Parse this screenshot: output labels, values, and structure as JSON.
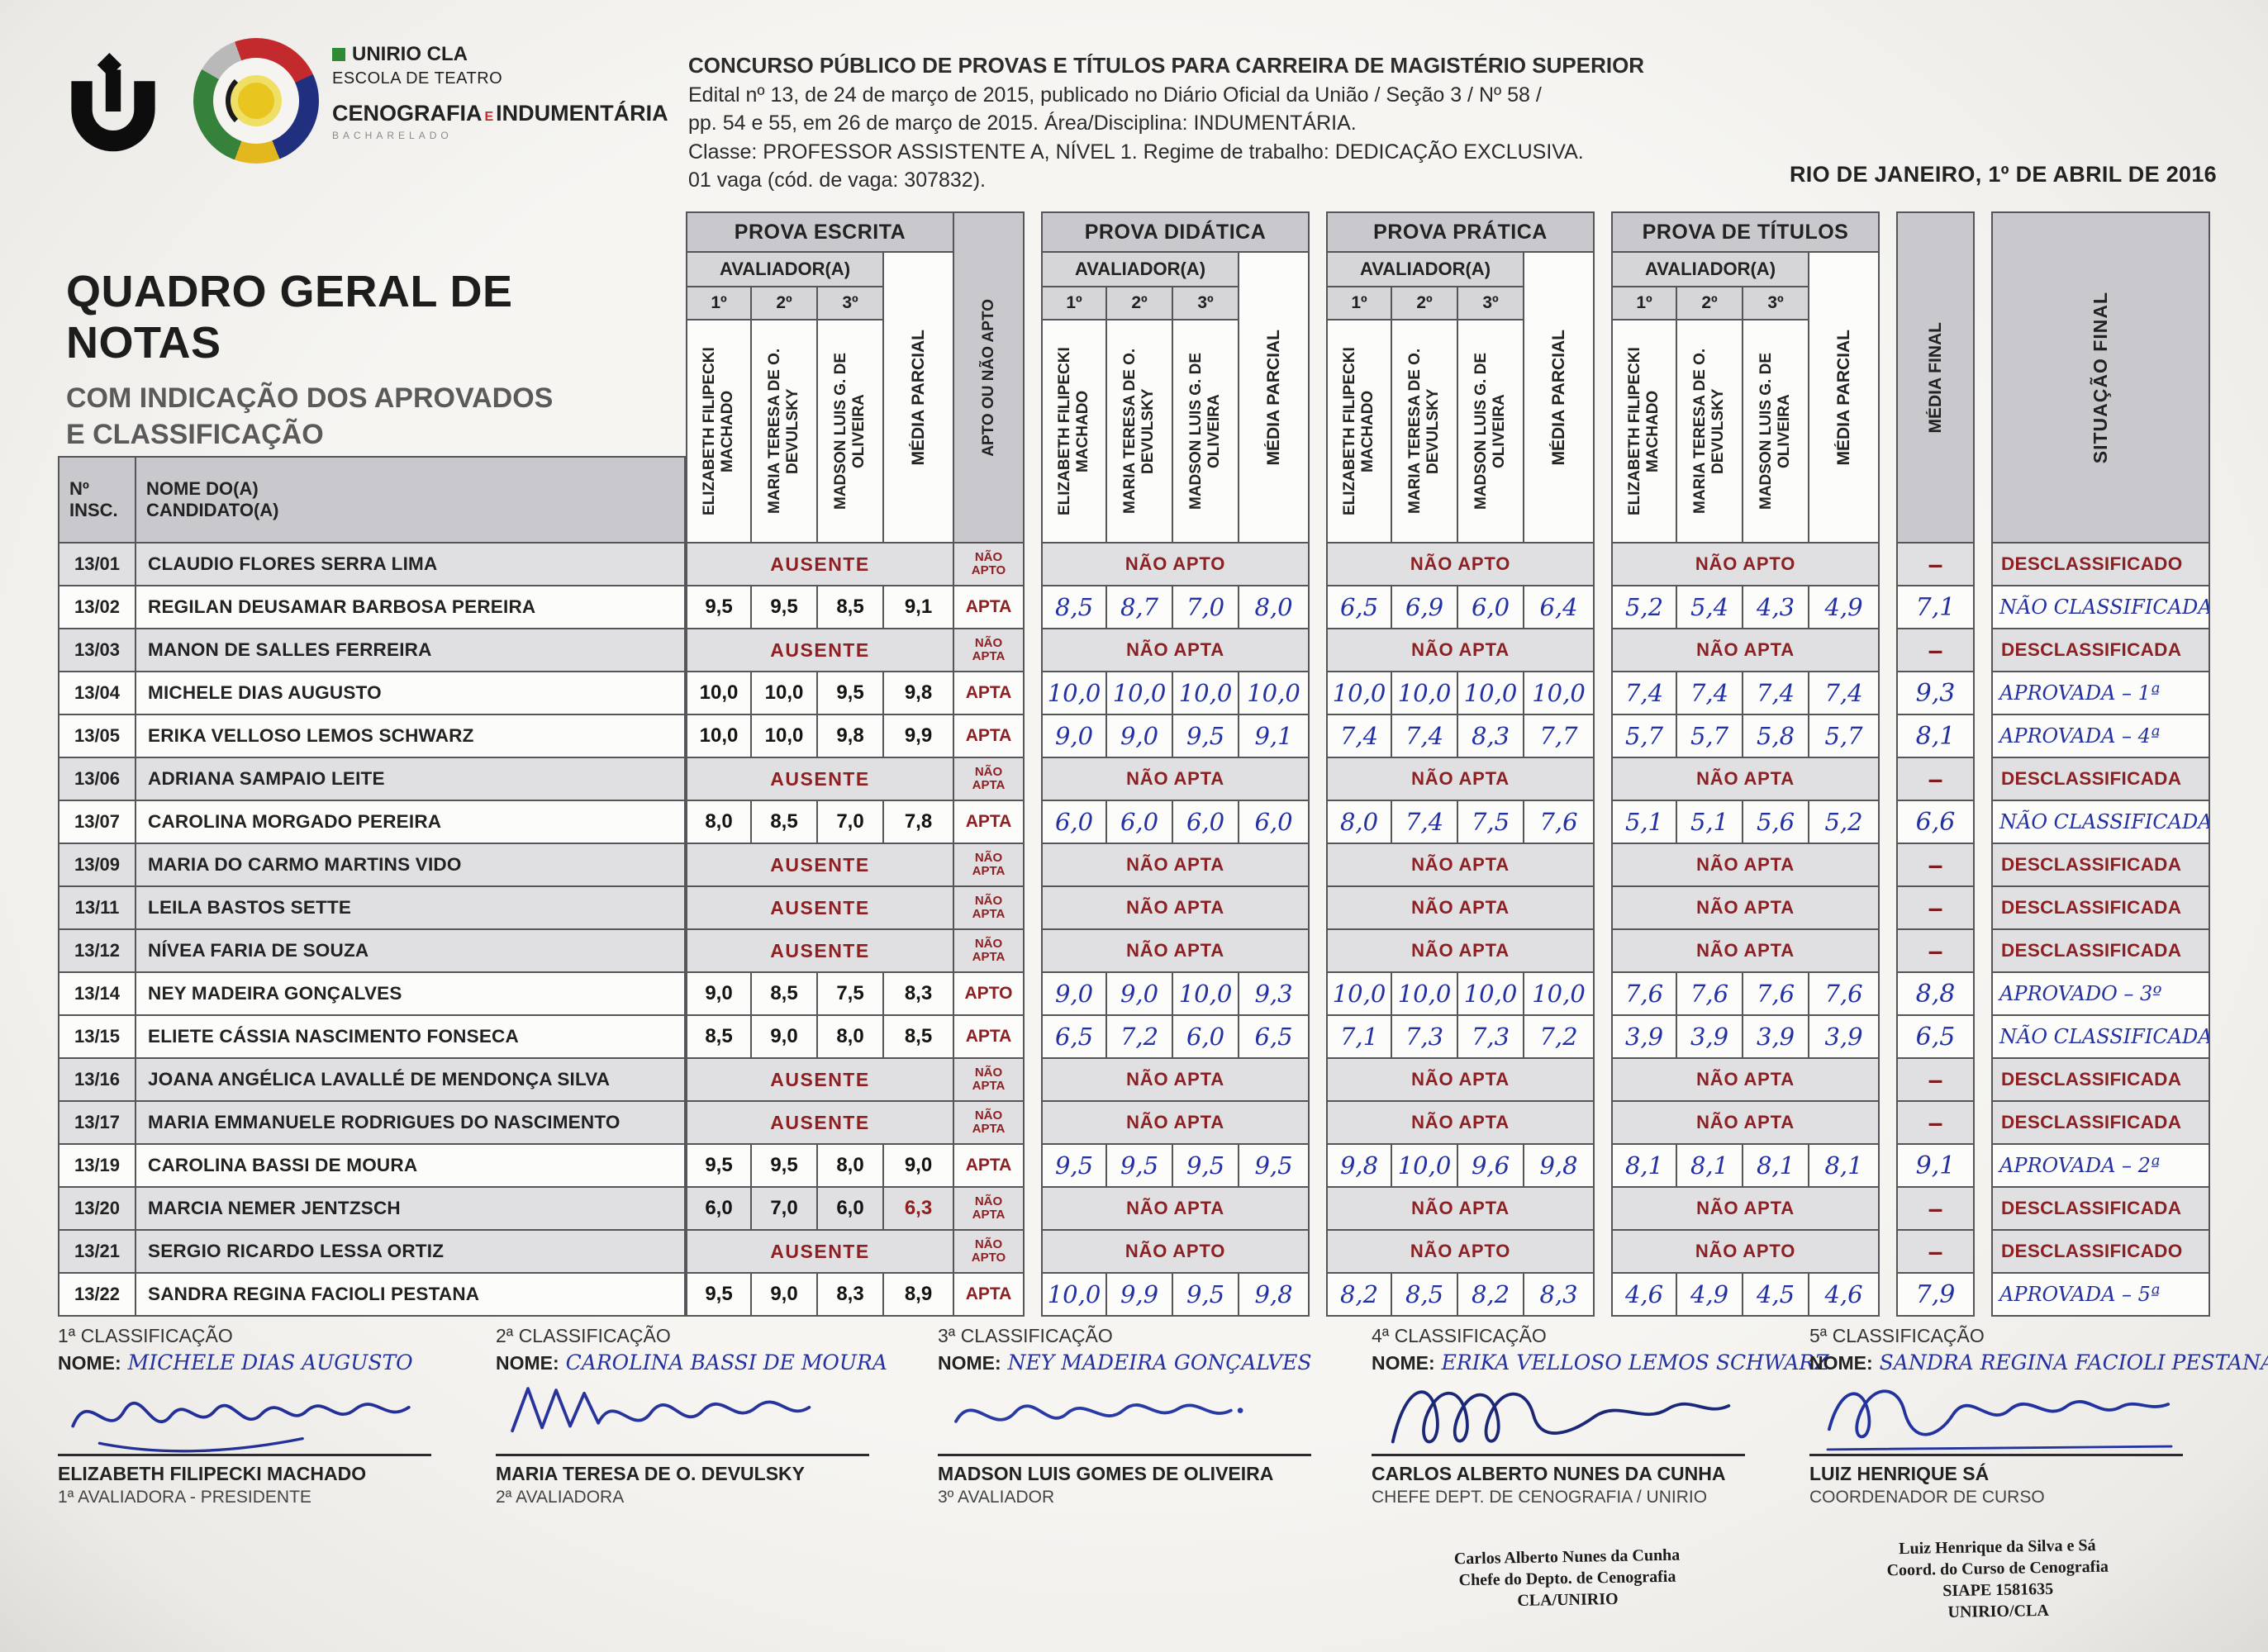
{
  "colors": {
    "maroon": "#8c2022",
    "ink_blue": "#2431a0",
    "header_gray": "#c9c9cd",
    "row_gray": "#e0e0e3",
    "border": "#56565a"
  },
  "page": {
    "title": "QUADRO GERAL DE NOTAS",
    "subtitle1": "COM INDICAÇÃO DOS APROVADOS",
    "subtitle2": "E CLASSIFICAÇÃO",
    "date": "RIO DE JANEIRO, 1º DE ABRIL DE 2016",
    "header": {
      "l1": "CONCURSO PÚBLICO DE PROVAS E TÍTULOS PARA CARREIRA DE MAGISTÉRIO SUPERIOR",
      "l2": "Edital nº 13, de 24 de março de 2015, publicado no Diário Oficial da União / Seção 3 / Nº 58 /",
      "l3": "pp. 54 e 55, em 26 de março de 2015. Área/Disciplina: INDUMENTÁRIA.",
      "l4": "Classe: PROFESSOR ASSISTENTE A, NÍVEL 1. Regime de trabalho: DEDICAÇÃO EXCLUSIVA.",
      "l5": "01 vaga (cód. de vaga: 307832)."
    },
    "logo": {
      "l1": "UNIRIO CLA",
      "l2": "ESCOLA DE TEATRO",
      "l3a": "CENOGRAFIA",
      "l3x": "E",
      "l3b": "INDUMENTÁRIA",
      "l4": "BACHARELADO"
    }
  },
  "table": {
    "col_insc_l1": "Nº",
    "col_insc_l2": "INSC.",
    "col_nome_l1": "NOME DO(A)",
    "col_nome_l2": "CANDIDATO(A)",
    "groups": [
      "PROVA ESCRITA",
      "PROVA DIDÁTICA",
      "PROVA PRÁTICA",
      "PROVA DE TÍTULOS"
    ],
    "avaliador_label": "AVALIADOR(A)",
    "ordinals": [
      "1º",
      "2º",
      "3º"
    ],
    "evaluators": [
      "ELIZABETH FILIPECKI MACHADO",
      "MARIA TERESA DE O. DEVULSKY",
      "MADSON LUIS G. DE OLIVEIRA"
    ],
    "media_parcial": "MÉDIA PARCIAL",
    "apto_header": "APTO OU NÃO APTO",
    "media_final_header": "MÉDIA FINAL",
    "situacao_header": "SITUAÇÃO FINAL",
    "rows": [
      {
        "insc": "13/01",
        "nome": "CLAUDIO FLORES SERRA LIMA",
        "shaded": true,
        "escrita": {
          "ausente": "AUSENTE"
        },
        "apto": "NÃO APTO",
        "didatica": {
          "na": "NÃO APTO"
        },
        "pratica": {
          "na": "NÃO APTO"
        },
        "titulos": {
          "na": "NÃO APTO"
        },
        "media_final": "–",
        "mf_hand": false,
        "situacao": "DESCLASSIFICADO",
        "sit_hand": false
      },
      {
        "insc": "13/02",
        "nome": "REGILAN DEUSAMAR BARBOSA PEREIRA",
        "shaded": false,
        "escrita": {
          "v": [
            "9,5",
            "9,5",
            "8,5"
          ],
          "m": "9,1"
        },
        "apto": "APTA",
        "didatica": {
          "v": [
            "8,5",
            "8,7",
            "7,0"
          ],
          "m": "8,0"
        },
        "pratica": {
          "v": [
            "6,5",
            "6,9",
            "6,0"
          ],
          "m": "6,4"
        },
        "titulos": {
          "v": [
            "5,2",
            "5,4",
            "4,3"
          ],
          "m": "4,9"
        },
        "media_final": "7,1",
        "mf_hand": true,
        "situacao": "NÃO CLASSIFICADA",
        "sit_hand": true
      },
      {
        "insc": "13/03",
        "nome": "MANON DE SALLES FERREIRA",
        "shaded": true,
        "escrita": {
          "ausente": "AUSENTE"
        },
        "apto": "NÃO APTA",
        "didatica": {
          "na": "NÃO APTA"
        },
        "pratica": {
          "na": "NÃO APTA"
        },
        "titulos": {
          "na": "NÃO APTA"
        },
        "media_final": "–",
        "mf_hand": false,
        "situacao": "DESCLASSIFICADA",
        "sit_hand": false
      },
      {
        "insc": "13/04",
        "nome": "MICHELE DIAS AUGUSTO",
        "shaded": false,
        "escrita": {
          "v": [
            "10,0",
            "10,0",
            "9,5"
          ],
          "m": "9,8"
        },
        "apto": "APTA",
        "didatica": {
          "v": [
            "10,0",
            "10,0",
            "10,0"
          ],
          "m": "10,0"
        },
        "pratica": {
          "v": [
            "10,0",
            "10,0",
            "10,0"
          ],
          "m": "10,0"
        },
        "titulos": {
          "v": [
            "7,4",
            "7,4",
            "7,4"
          ],
          "m": "7,4"
        },
        "media_final": "9,3",
        "mf_hand": true,
        "situacao": "APROVADA – 1ª",
        "sit_hand": true
      },
      {
        "insc": "13/05",
        "nome": "ERIKA VELLOSO LEMOS SCHWARZ",
        "shaded": false,
        "escrita": {
          "v": [
            "10,0",
            "10,0",
            "9,8"
          ],
          "m": "9,9"
        },
        "apto": "APTA",
        "didatica": {
          "v": [
            "9,0",
            "9,0",
            "9,5"
          ],
          "m": "9,1"
        },
        "pratica": {
          "v": [
            "7,4",
            "7,4",
            "8,3"
          ],
          "m": "7,7"
        },
        "titulos": {
          "v": [
            "5,7",
            "5,7",
            "5,8"
          ],
          "m": "5,7"
        },
        "media_final": "8,1",
        "mf_hand": true,
        "situacao": "APROVADA – 4ª",
        "sit_hand": true
      },
      {
        "insc": "13/06",
        "nome": "ADRIANA SAMPAIO LEITE",
        "shaded": true,
        "escrita": {
          "ausente": "AUSENTE"
        },
        "apto": "NÃO APTA",
        "didatica": {
          "na": "NÃO APTA"
        },
        "pratica": {
          "na": "NÃO APTA"
        },
        "titulos": {
          "na": "NÃO APTA"
        },
        "media_final": "–",
        "mf_hand": false,
        "situacao": "DESCLASSIFICADA",
        "sit_hand": false
      },
      {
        "insc": "13/07",
        "nome": "CAROLINA MORGADO PEREIRA",
        "shaded": false,
        "escrita": {
          "v": [
            "8,0",
            "8,5",
            "7,0"
          ],
          "m": "7,8"
        },
        "apto": "APTA",
        "didatica": {
          "v": [
            "6,0",
            "6,0",
            "6,0"
          ],
          "m": "6,0"
        },
        "pratica": {
          "v": [
            "8,0",
            "7,4",
            "7,5"
          ],
          "m": "7,6"
        },
        "titulos": {
          "v": [
            "5,1",
            "5,1",
            "5,6"
          ],
          "m": "5,2"
        },
        "media_final": "6,6",
        "mf_hand": true,
        "situacao": "NÃO CLASSIFICADA",
        "sit_hand": true
      },
      {
        "insc": "13/09",
        "nome": "MARIA DO CARMO MARTINS VIDO",
        "shaded": true,
        "escrita": {
          "ausente": "AUSENTE"
        },
        "apto": "NÃO APTA",
        "didatica": {
          "na": "NÃO APTA"
        },
        "pratica": {
          "na": "NÃO APTA"
        },
        "titulos": {
          "na": "NÃO APTA"
        },
        "media_final": "–",
        "mf_hand": false,
        "situacao": "DESCLASSIFICADA",
        "sit_hand": false
      },
      {
        "insc": "13/11",
        "nome": "LEILA BASTOS SETTE",
        "shaded": true,
        "escrita": {
          "ausente": "AUSENTE"
        },
        "apto": "NÃO APTA",
        "didatica": {
          "na": "NÃO APTA"
        },
        "pratica": {
          "na": "NÃO APTA"
        },
        "titulos": {
          "na": "NÃO APTA"
        },
        "media_final": "–",
        "mf_hand": false,
        "situacao": "DESCLASSIFICADA",
        "sit_hand": false
      },
      {
        "insc": "13/12",
        "nome": "NÍVEA FARIA DE SOUZA",
        "shaded": true,
        "escrita": {
          "ausente": "AUSENTE"
        },
        "apto": "NÃO APTA",
        "didatica": {
          "na": "NÃO APTA"
        },
        "pratica": {
          "na": "NÃO APTA"
        },
        "titulos": {
          "na": "NÃO APTA"
        },
        "media_final": "–",
        "mf_hand": false,
        "situacao": "DESCLASSIFICADA",
        "sit_hand": false
      },
      {
        "insc": "13/14",
        "nome": "NEY MADEIRA GONÇALVES",
        "shaded": false,
        "escrita": {
          "v": [
            "9,0",
            "8,5",
            "7,5"
          ],
          "m": "8,3"
        },
        "apto": "APTO",
        "didatica": {
          "v": [
            "9,0",
            "9,0",
            "10,0"
          ],
          "m": "9,3"
        },
        "pratica": {
          "v": [
            "10,0",
            "10,0",
            "10,0"
          ],
          "m": "10,0"
        },
        "titulos": {
          "v": [
            "7,6",
            "7,6",
            "7,6"
          ],
          "m": "7,6"
        },
        "media_final": "8,8",
        "mf_hand": true,
        "situacao": "APROVADO – 3º",
        "sit_hand": true
      },
      {
        "insc": "13/15",
        "nome": "ELIETE CÁSSIA NASCIMENTO FONSECA",
        "shaded": false,
        "escrita": {
          "v": [
            "8,5",
            "9,0",
            "8,0"
          ],
          "m": "8,5"
        },
        "apto": "APTA",
        "didatica": {
          "v": [
            "6,5",
            "7,2",
            "6,0"
          ],
          "m": "6,5"
        },
        "pratica": {
          "v": [
            "7,1",
            "7,3",
            "7,3"
          ],
          "m": "7,2"
        },
        "titulos": {
          "v": [
            "3,9",
            "3,9",
            "3,9"
          ],
          "m": "3,9"
        },
        "media_final": "6,5",
        "mf_hand": true,
        "situacao": "NÃO CLASSIFICADA",
        "sit_hand": true
      },
      {
        "insc": "13/16",
        "nome": "JOANA ANGÉLICA LAVALLÉ DE MENDONÇA SILVA",
        "shaded": true,
        "escrita": {
          "ausente": "AUSENTE"
        },
        "apto": "NÃO APTA",
        "didatica": {
          "na": "NÃO APTA"
        },
        "pratica": {
          "na": "NÃO APTA"
        },
        "titulos": {
          "na": "NÃO APTA"
        },
        "media_final": "–",
        "mf_hand": false,
        "situacao": "DESCLASSIFICADA",
        "sit_hand": false
      },
      {
        "insc": "13/17",
        "nome": "MARIA EMMANUELE RODRIGUES DO NASCIMENTO",
        "shaded": true,
        "escrita": {
          "ausente": "AUSENTE"
        },
        "apto": "NÃO APTA",
        "didatica": {
          "na": "NÃO APTA"
        },
        "pratica": {
          "na": "NÃO APTA"
        },
        "titulos": {
          "na": "NÃO APTA"
        },
        "media_final": "–",
        "mf_hand": false,
        "situacao": "DESCLASSIFICADA",
        "sit_hand": false
      },
      {
        "insc": "13/19",
        "nome": "CAROLINA BASSI DE MOURA",
        "shaded": false,
        "escrita": {
          "v": [
            "9,5",
            "9,5",
            "8,0"
          ],
          "m": "9,0"
        },
        "apto": "APTA",
        "didatica": {
          "v": [
            "9,5",
            "9,5",
            "9,5"
          ],
          "m": "9,5"
        },
        "pratica": {
          "v": [
            "9,8",
            "10,0",
            "9,6"
          ],
          "m": "9,8"
        },
        "titulos": {
          "v": [
            "8,1",
            "8,1",
            "8,1"
          ],
          "m": "8,1"
        },
        "media_final": "9,1",
        "mf_hand": true,
        "situacao": "APROVADA – 2ª",
        "sit_hand": true
      },
      {
        "insc": "13/20",
        "nome": "MARCIA NEMER JENTZSCH",
        "shaded": true,
        "escrita": {
          "v": [
            "6,0",
            "7,0",
            "6,0"
          ],
          "m": "6,3",
          "m_red": true
        },
        "apto": "NÃO APTA",
        "didatica": {
          "na": "NÃO APTA"
        },
        "pratica": {
          "na": "NÃO APTA"
        },
        "titulos": {
          "na": "NÃO APTA"
        },
        "media_final": "–",
        "mf_hand": false,
        "situacao": "DESCLASSIFICADA",
        "sit_hand": false
      },
      {
        "insc": "13/21",
        "nome": "SERGIO RICARDO LESSA ORTIZ",
        "shaded": true,
        "escrita": {
          "ausente": "AUSENTE"
        },
        "apto": "NÃO APTO",
        "didatica": {
          "na": "NÃO APTO"
        },
        "pratica": {
          "na": "NÃO APTO"
        },
        "titulos": {
          "na": "NÃO APTO"
        },
        "media_final": "–",
        "mf_hand": false,
        "situacao": "DESCLASSIFICADO",
        "sit_hand": false
      },
      {
        "insc": "13/22",
        "nome": "SANDRA REGINA FACIOLI PESTANA",
        "shaded": false,
        "escrita": {
          "v": [
            "9,5",
            "9,0",
            "8,3"
          ],
          "m": "8,9"
        },
        "apto": "APTA",
        "didatica": {
          "v": [
            "10,0",
            "9,9",
            "9,5"
          ],
          "m": "9,8"
        },
        "pratica": {
          "v": [
            "8,2",
            "8,5",
            "8,2"
          ],
          "m": "8,3"
        },
        "titulos": {
          "v": [
            "4,6",
            "4,9",
            "4,5"
          ],
          "m": "4,6"
        },
        "media_final": "7,9",
        "mf_hand": true,
        "situacao": "APROVADA – 5ª",
        "sit_hand": true
      }
    ]
  },
  "footer": {
    "nome_label": "NOME:",
    "classifications": [
      {
        "label": "1ª CLASSIFICAÇÃO",
        "name": "MICHELE DIAS AUGUSTO"
      },
      {
        "label": "2ª CLASSIFICAÇÃO",
        "name": "CAROLINA BASSI DE MOURA"
      },
      {
        "label": "3ª CLASSIFICAÇÃO",
        "name": "NEY MADEIRA GONÇALVES"
      },
      {
        "label": "4ª CLASSIFICAÇÃO",
        "name": "ERIKA VELLOSO LEMOS SCHWARZ"
      },
      {
        "label": "5ª CLASSIFICAÇÃO",
        "name": "SANDRA REGINA FACIOLI PESTANA"
      }
    ],
    "signatures": [
      {
        "name": "ELIZABETH FILIPECKI MACHADO",
        "role": "1ª AVALIADORA - PRESIDENTE"
      },
      {
        "name": "MARIA TERESA DE O. DEVULSKY",
        "role": "2ª AVALIADORA"
      },
      {
        "name": "MADSON LUIS GOMES DE OLIVEIRA",
        "role": "3º AVALIADOR"
      },
      {
        "name": "CARLOS ALBERTO NUNES DA CUNHA",
        "role": "CHEFE DEPT. DE CENOGRAFIA / UNIRIO"
      },
      {
        "name": "LUIZ HENRIQUE SÁ",
        "role": "COORDENADOR DE CURSO"
      }
    ],
    "stamps": [
      {
        "lines": [
          "Carlos Alberto Nunes da Cunha",
          "Chefe do Depto. de Cenografia",
          "CLA/UNIRIO"
        ]
      },
      {
        "lines": [
          "Luiz Henrique da Silva e Sá",
          "Coord. do Curso de Cenografia",
          "SIAPE 1581635",
          "UNIRIO/CLA"
        ]
      }
    ]
  }
}
